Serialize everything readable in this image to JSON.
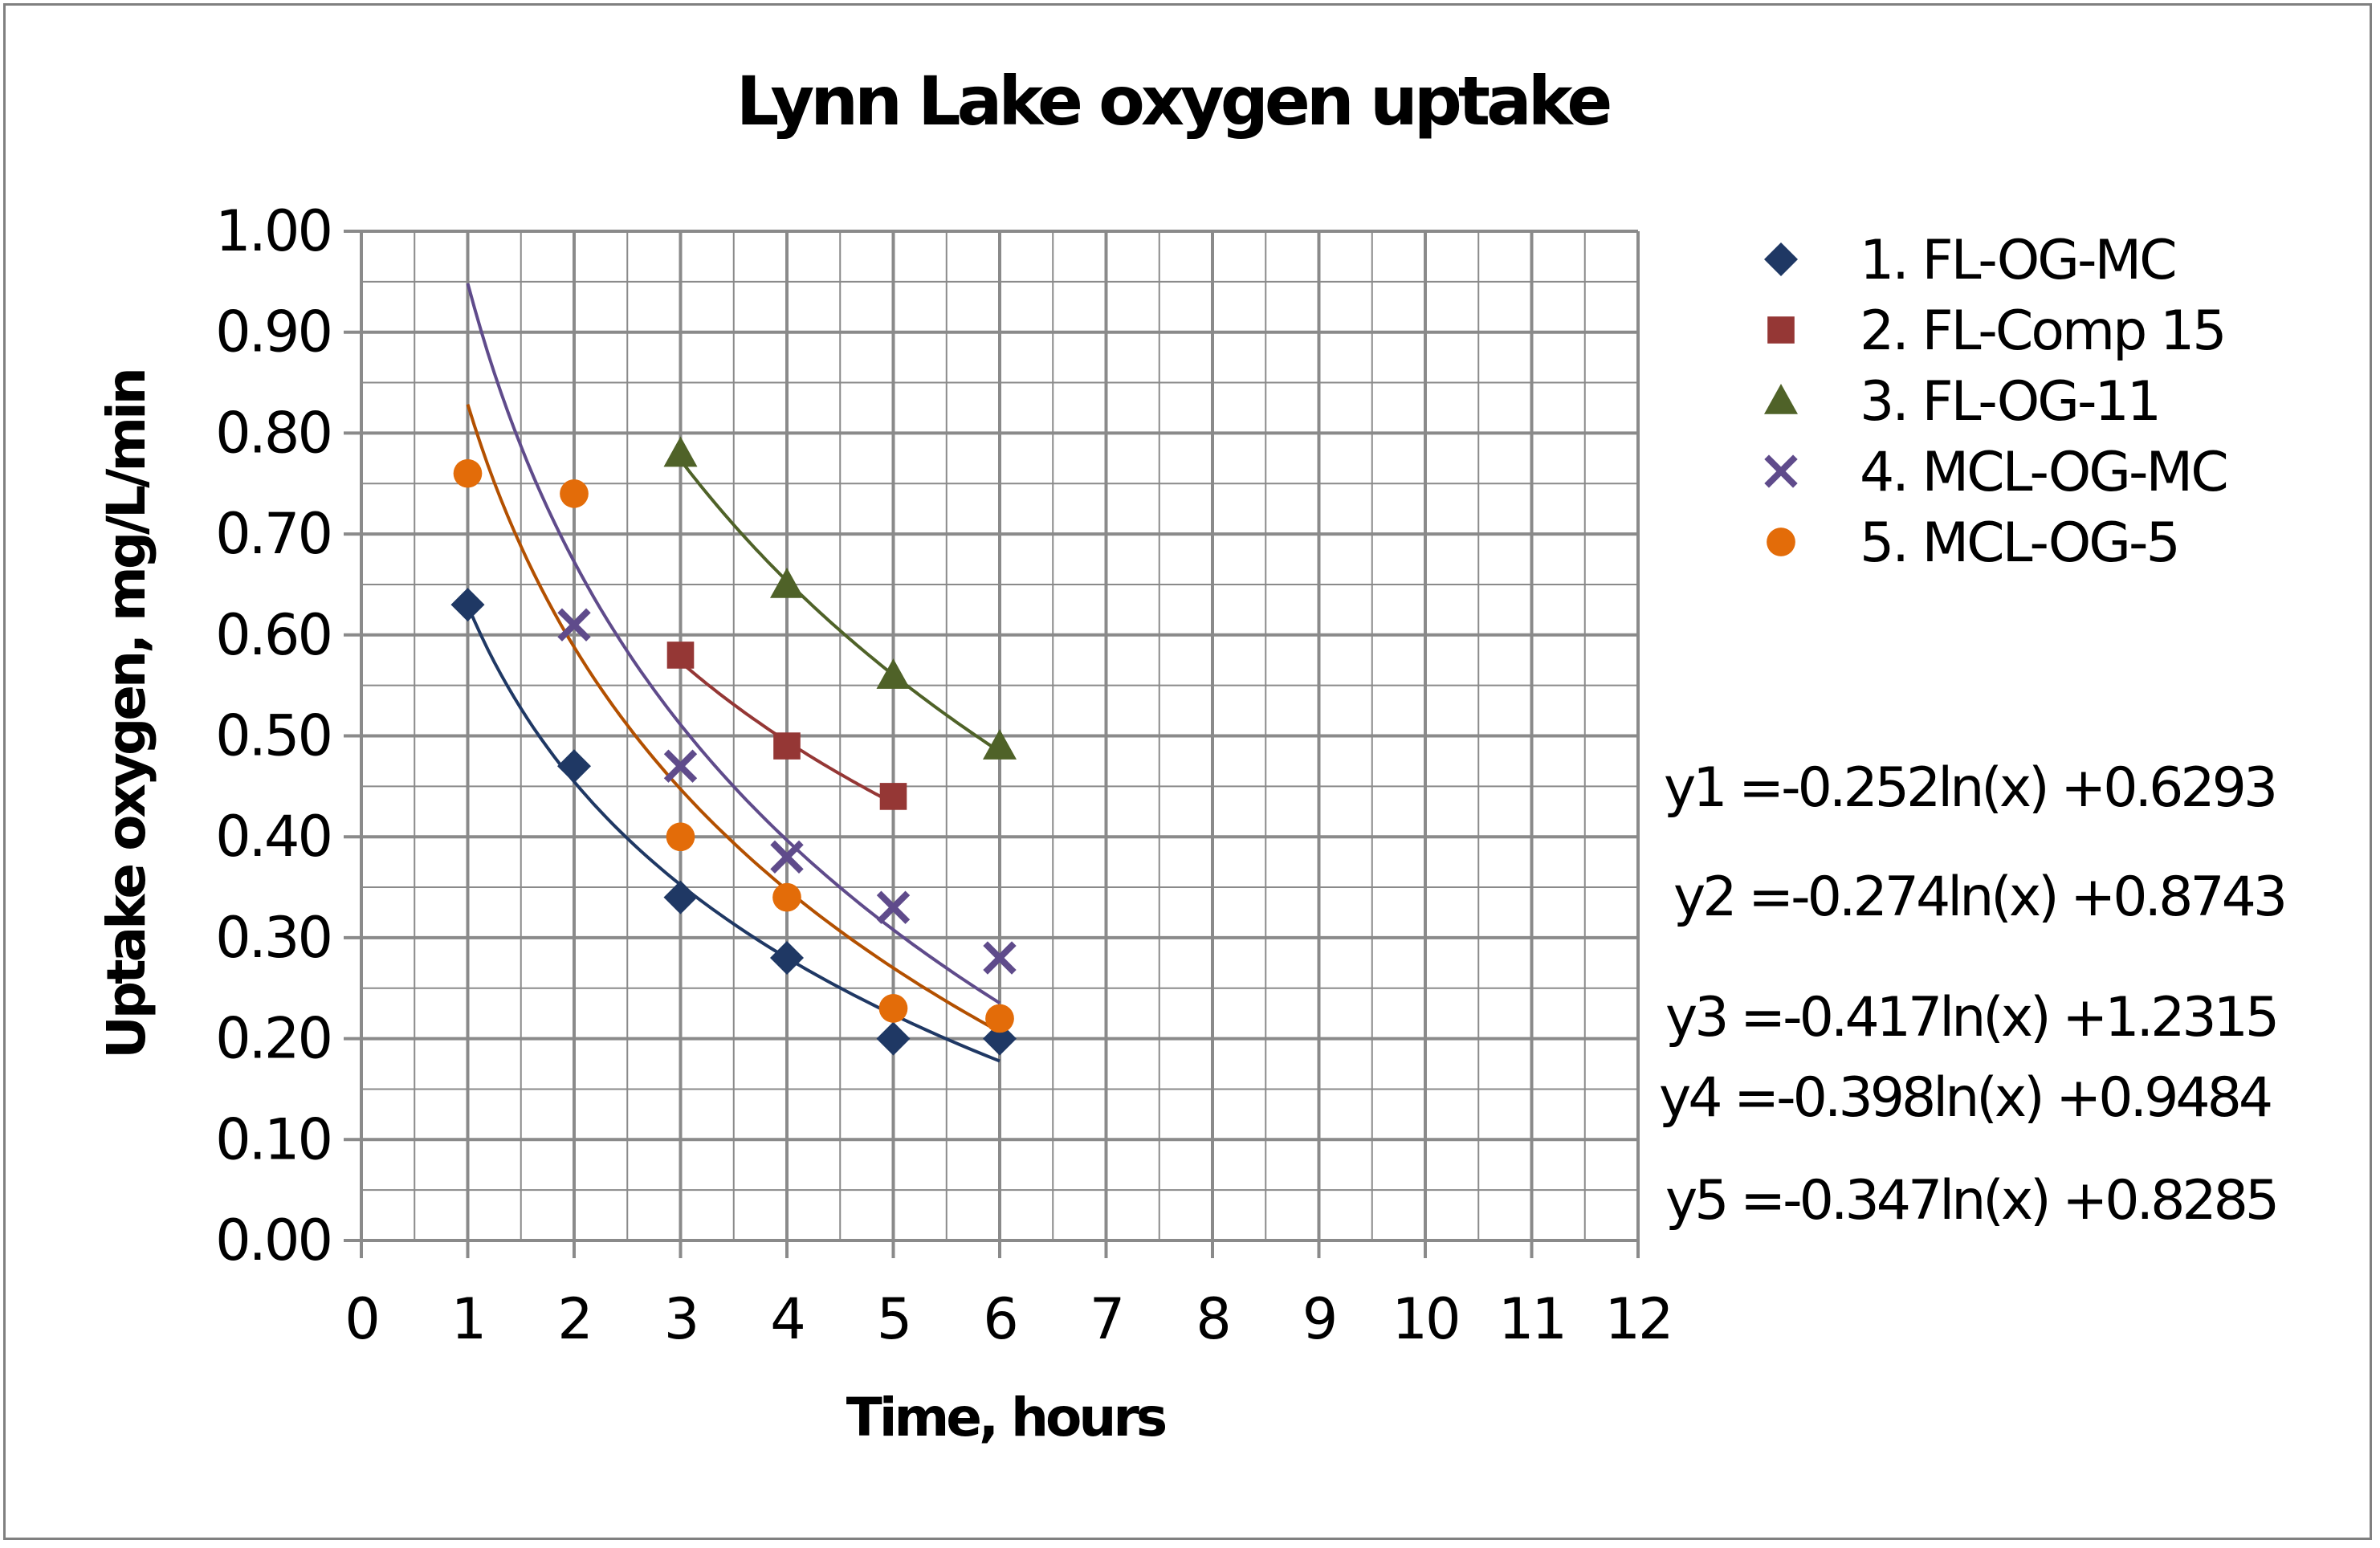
{
  "chart_data": {
    "type": "scatter",
    "title": "Lynn Lake oxygen uptake",
    "xlabel": "Time, hours",
    "ylabel": "Uptake oxygen, mg/L/min",
    "xlim": [
      0,
      12
    ],
    "ylim": [
      0,
      1.0
    ],
    "x_ticks": [
      "0",
      "1",
      "2",
      "3",
      "4",
      "5",
      "6",
      "7",
      "8",
      "9",
      "10",
      "11",
      "12"
    ],
    "y_ticks": [
      "0.00",
      "0.10",
      "0.20",
      "0.30",
      "0.40",
      "0.50",
      "0.60",
      "0.70",
      "0.80",
      "0.90",
      "1.00"
    ],
    "grid": true,
    "legend_position": "top-right",
    "series": [
      {
        "name": "1. FL-OG-MC",
        "marker": "diamond",
        "color": "#1f3864",
        "x": [
          1,
          2,
          3,
          4,
          5,
          6
        ],
        "y": [
          0.63,
          0.47,
          0.34,
          0.28,
          0.2,
          0.2
        ],
        "trendline": {
          "a": -0.252,
          "b": 0.6293,
          "x_range": [
            1,
            6
          ]
        }
      },
      {
        "name": "2. FL-Comp 15",
        "marker": "square",
        "color": "#953735",
        "x": [
          3,
          4,
          5
        ],
        "y": [
          0.58,
          0.49,
          0.44
        ],
        "trendline": {
          "a": -0.274,
          "b": 0.8743,
          "x_range": [
            3,
            5
          ]
        }
      },
      {
        "name": "3. FL-OG-11",
        "marker": "triangle",
        "color": "#4f6228",
        "x": [
          3,
          4,
          5,
          6
        ],
        "y": [
          0.78,
          0.65,
          0.56,
          0.49
        ],
        "trendline": {
          "a": -0.417,
          "b": 1.2315,
          "x_range": [
            3,
            6
          ]
        }
      },
      {
        "name": "4. MCL-OG-MC",
        "marker": "x",
        "color": "#5f4b8b",
        "x": [
          2,
          3,
          4,
          5,
          6
        ],
        "y": [
          0.61,
          0.47,
          0.38,
          0.33,
          0.28
        ],
        "trendline": {
          "a": -0.398,
          "b": 0.9484,
          "x_range": [
            1,
            6
          ]
        }
      },
      {
        "name": "5. MCL-OG-5",
        "marker": "circle",
        "color": "#e36c09",
        "x": [
          1,
          2,
          3,
          4,
          5,
          6
        ],
        "y": [
          0.76,
          0.74,
          0.4,
          0.34,
          0.23,
          0.22
        ],
        "trendline": {
          "a": -0.347,
          "b": 0.8285,
          "x_range": [
            1,
            6
          ]
        }
      }
    ],
    "trendline_colors": [
      "#1f3864",
      "#953735",
      "#4f6228",
      "#5f4b8b",
      "#b35000"
    ],
    "annotations": [
      "y1 =-0.252ln(x) +0.6293",
      "y2 =-0.274ln(x) +0.8743",
      "y3 =-0.417ln(x) +1.2315",
      "y4 =-0.398ln(x) +0.9484",
      "y5 =-0.347ln(x) +0.8285"
    ]
  }
}
